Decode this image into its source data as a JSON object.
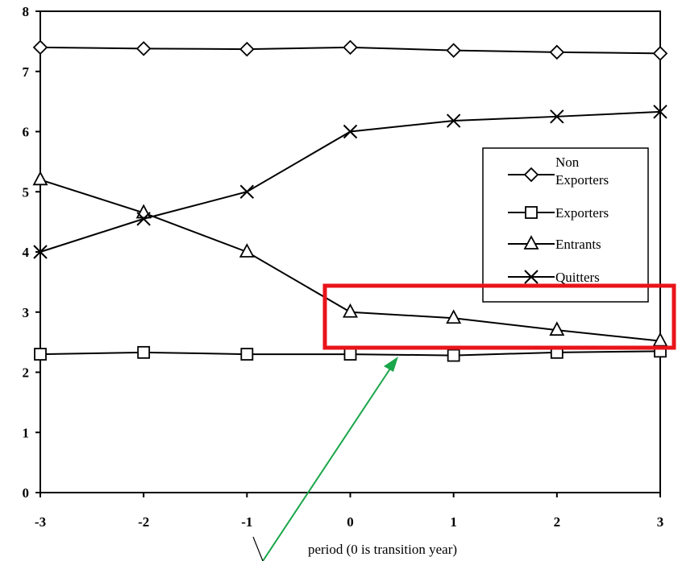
{
  "chart_data": {
    "type": "line",
    "title": "",
    "xlabel": "period (0 is transition year)",
    "ylabel": "",
    "x": [
      -3,
      -2,
      -1,
      0,
      1,
      2,
      3
    ],
    "xlim": [
      -3,
      3
    ],
    "ylim": [
      0,
      8
    ],
    "x_ticks": [
      "-3",
      "-2",
      "-1",
      "0",
      "1",
      "2",
      "3"
    ],
    "y_ticks": [
      "0",
      "1",
      "2",
      "3",
      "4",
      "5",
      "6",
      "7",
      "8"
    ],
    "grid": false,
    "legend_position": "right",
    "series": [
      {
        "name": "Non Exporters",
        "legend_lines": [
          "Non",
          "Exporters"
        ],
        "marker": "diamond",
        "values": [
          7.4,
          7.38,
          7.37,
          7.4,
          7.35,
          7.32,
          7.3
        ]
      },
      {
        "name": "Exporters",
        "legend_lines": [
          "Exporters"
        ],
        "marker": "square",
        "values": [
          2.3,
          2.33,
          2.3,
          2.3,
          2.28,
          2.33,
          2.35
        ]
      },
      {
        "name": "Entrants",
        "legend_lines": [
          "Entrants"
        ],
        "marker": "triangle",
        "values": [
          5.2,
          4.65,
          4.0,
          3.0,
          2.9,
          2.7,
          2.52
        ]
      },
      {
        "name": "Quitters",
        "legend_lines": [
          "Quitters"
        ],
        "marker": "x",
        "values": [
          4.0,
          4.55,
          5.0,
          6.0,
          6.18,
          6.25,
          6.33
        ]
      }
    ],
    "annotations": {
      "highlight_box_color": "#e8141a",
      "arrow_color": "#1aa64a"
    }
  }
}
